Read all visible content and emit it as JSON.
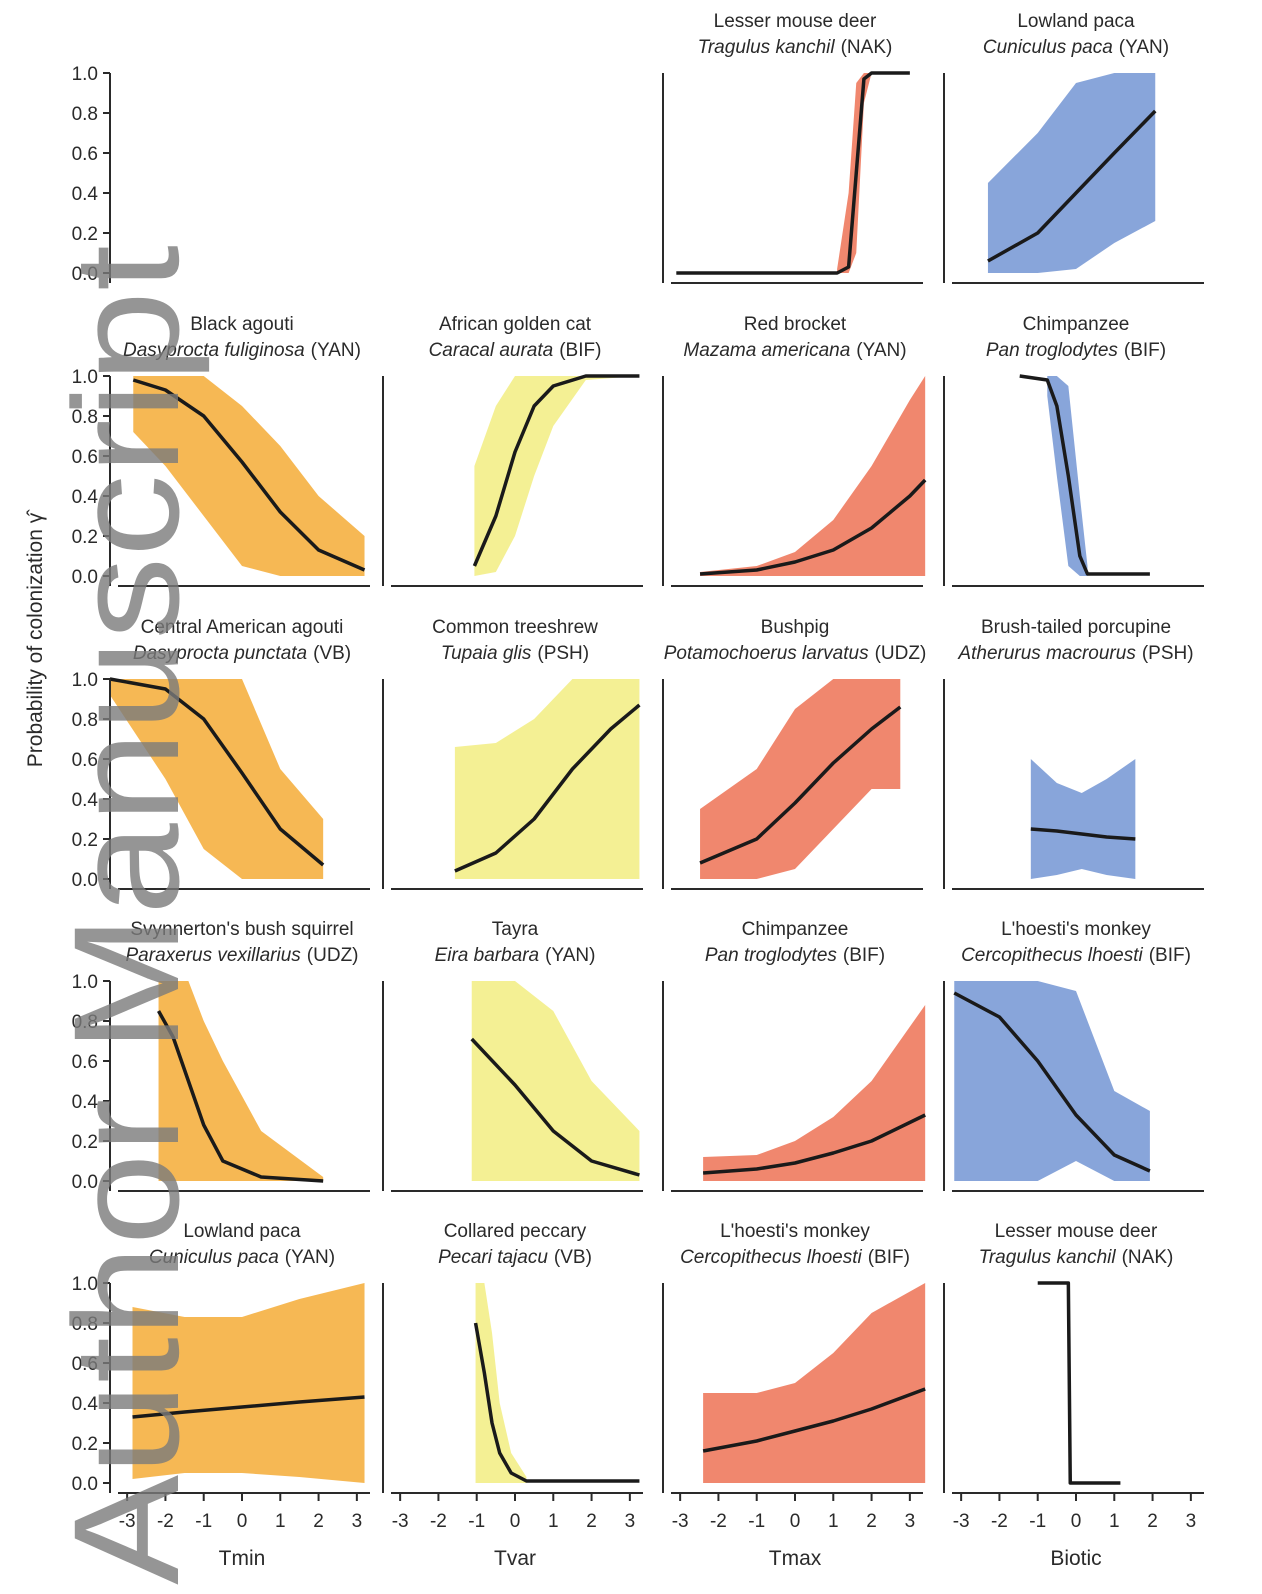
{
  "figure": {
    "ylabel": "Probability of colonization γ̂",
    "watermark": "Author Manuscript"
  },
  "chart_data": [
    {
      "type": "axis",
      "ylim": [
        -0.05,
        1.0
      ],
      "yticks": [
        {
          "value": 0,
          "label": "0.0"
        },
        {
          "value": 0.2,
          "label": "0.2"
        },
        {
          "value": 0.4,
          "label": "0.4"
        },
        {
          "value": 0.6,
          "label": "0.6"
        },
        {
          "value": 0.8,
          "label": "0.8"
        },
        {
          "value": 1,
          "label": "1.0"
        }
      ]
    },
    {
      "type": "line",
      "title": "Lesser mouse deer",
      "subtitle": "Tragulus kanchil",
      "site": "(NAK)",
      "color": "#ee7a5e",
      "line_color": "#1a1a1a",
      "xlim": [
        -3.5,
        3.5
      ],
      "ylim": [
        -0.05,
        1.0
      ],
      "x": [
        -3.1,
        1.1,
        1.4,
        1.6,
        1.8,
        2.0,
        3.0
      ],
      "values": [
        0,
        0,
        0.03,
        0.5,
        0.97,
        1,
        1
      ],
      "lower": [
        null,
        0,
        0,
        0.1,
        0.85,
        1,
        null
      ],
      "upper": [
        null,
        0.02,
        0.4,
        0.95,
        1,
        1,
        null
      ]
    },
    {
      "type": "line",
      "title": "Lowland paca",
      "subtitle": "Cuniculus paca",
      "site": "(YAN)",
      "color": "#7b9bd6",
      "line_color": "#1a1a1a",
      "xlim": [
        -3.5,
        3.5
      ],
      "ylim": [
        -0.05,
        1.0
      ],
      "x": [
        -2.3,
        -1,
        0,
        1,
        2.07
      ],
      "values": [
        0.06,
        0.2,
        0.4,
        0.6,
        0.81
      ],
      "lower": [
        0,
        0,
        0.02,
        0.15,
        0.26
      ],
      "upper": [
        0.45,
        0.7,
        0.95,
        1,
        1
      ]
    },
    {
      "type": "line",
      "title": "Black agouti",
      "subtitle": "Dasyprocta fuliginosa",
      "site": "(YAN)",
      "color": "#f5b041",
      "line_color": "#1a1a1a",
      "xlim": [
        -3.5,
        3.5
      ],
      "ylim": [
        -0.05,
        1.0
      ],
      "yticks": [
        {
          "value": 0,
          "label": "0.0"
        },
        {
          "value": 0.2,
          "label": "0.2"
        },
        {
          "value": 0.4,
          "label": "0.4"
        },
        {
          "value": 0.6,
          "label": "0.6"
        },
        {
          "value": 0.8,
          "label": "0.8"
        },
        {
          "value": 1,
          "label": "1.0"
        }
      ],
      "x": [
        -2.84,
        -2,
        -1,
        0,
        1,
        2,
        3.2
      ],
      "values": [
        0.98,
        0.93,
        0.8,
        0.57,
        0.32,
        0.13,
        0.03
      ],
      "lower": [
        0.72,
        0.55,
        0.3,
        0.05,
        0,
        0,
        0
      ],
      "upper": [
        1,
        1,
        1,
        0.85,
        0.65,
        0.4,
        0.2
      ]
    },
    {
      "type": "line",
      "title": "African golden cat",
      "subtitle": "Caracal aurata",
      "site": "(BIF)",
      "color": "#f3ee88",
      "line_color": "#1a1a1a",
      "xlim": [
        -3.5,
        3.5
      ],
      "ylim": [
        -0.05,
        1.0
      ],
      "x": [
        -1.06,
        -0.5,
        0,
        0.5,
        1,
        1.85,
        3.25
      ],
      "values": [
        0.05,
        0.3,
        0.62,
        0.85,
        0.95,
        1,
        1
      ],
      "lower": [
        0,
        0.02,
        0.2,
        0.5,
        0.75,
        0.98,
        1
      ],
      "upper": [
        0.55,
        0.85,
        1,
        1,
        1,
        1,
        1
      ]
    },
    {
      "type": "line",
      "title": "Red brocket",
      "subtitle": "Mazama americana",
      "site": "(YAN)",
      "color": "#ee7a5e",
      "line_color": "#1a1a1a",
      "xlim": [
        -3.5,
        3.5
      ],
      "ylim": [
        -0.05,
        1.0
      ],
      "x": [
        -2.48,
        -1,
        0,
        1,
        2,
        3,
        3.4
      ],
      "values": [
        0.01,
        0.03,
        0.07,
        0.13,
        0.24,
        0.4,
        0.48
      ],
      "lower": [
        0,
        0,
        0,
        0,
        0,
        0,
        0
      ],
      "upper": [
        0.02,
        0.05,
        0.12,
        0.28,
        0.55,
        0.88,
        1
      ]
    },
    {
      "type": "line",
      "title": "Chimpanzee",
      "subtitle": "Pan troglodytes",
      "site": "(BIF)",
      "color": "#7b9bd6",
      "line_color": "#1a1a1a",
      "xlim": [
        -3.5,
        3.5
      ],
      "ylim": [
        -0.05,
        1.0
      ],
      "x": [
        -1.47,
        -0.75,
        -0.5,
        -0.2,
        0.1,
        0.3,
        1.93
      ],
      "values": [
        1,
        0.98,
        0.85,
        0.5,
        0.1,
        0.01,
        0.01
      ],
      "lower": [
        null,
        0.9,
        0.5,
        0.05,
        0,
        0,
        null
      ],
      "upper": [
        null,
        1,
        1,
        0.95,
        0.4,
        0.05,
        null
      ]
    },
    {
      "type": "line",
      "title": "Central American agouti",
      "subtitle": "Dasyprocta punctata",
      "site": "(VB)",
      "color": "#f5b041",
      "line_color": "#1a1a1a",
      "xlim": [
        -3.5,
        3.5
      ],
      "ylim": [
        -0.05,
        1.0
      ],
      "yticks": [
        {
          "value": 0,
          "label": "0.0"
        },
        {
          "value": 0.2,
          "label": "0.2"
        },
        {
          "value": 0.4,
          "label": "0.4"
        },
        {
          "value": 0.6,
          "label": "0.6"
        },
        {
          "value": 0.8,
          "label": "0.8"
        },
        {
          "value": 1,
          "label": "1.0"
        }
      ],
      "x": [
        -3.45,
        -2,
        -1,
        0,
        1,
        2.12
      ],
      "values": [
        1,
        0.95,
        0.8,
        0.53,
        0.25,
        0.07
      ],
      "lower": [
        0.92,
        0.5,
        0.15,
        0,
        0,
        0
      ],
      "upper": [
        1,
        1,
        1,
        1,
        0.55,
        0.3
      ]
    },
    {
      "type": "line",
      "title": "Common treeshrew",
      "subtitle": "Tupaia glis",
      "site": "(PSH)",
      "color": "#f3ee88",
      "line_color": "#1a1a1a",
      "xlim": [
        -3.5,
        3.5
      ],
      "ylim": [
        -0.05,
        1.0
      ],
      "x": [
        -1.57,
        -0.5,
        0.5,
        1.5,
        2.5,
        3.25
      ],
      "values": [
        0.04,
        0.13,
        0.3,
        0.55,
        0.75,
        0.87
      ],
      "lower": [
        0,
        0,
        0,
        0,
        0,
        0
      ],
      "upper": [
        0.66,
        0.68,
        0.8,
        1,
        1,
        1
      ]
    },
    {
      "type": "line",
      "title": "Bushpig",
      "subtitle": "Potamochoerus larvatus",
      "site": "(UDZ)",
      "color": "#ee7a5e",
      "line_color": "#1a1a1a",
      "xlim": [
        -3.5,
        3.5
      ],
      "ylim": [
        -0.05,
        1.0
      ],
      "x": [
        -2.48,
        -1,
        0,
        1,
        2,
        2.75
      ],
      "values": [
        0.08,
        0.2,
        0.38,
        0.58,
        0.75,
        0.86
      ],
      "lower": [
        0,
        0,
        0.05,
        0.25,
        0.45,
        0.45
      ],
      "upper": [
        0.35,
        0.55,
        0.85,
        1,
        1,
        1
      ]
    },
    {
      "type": "line",
      "title": "Brush-tailed porcupine",
      "subtitle": "Atherurus macrourus",
      "site": "(PSH)",
      "color": "#7b9bd6",
      "line_color": "#1a1a1a",
      "xlim": [
        -3.5,
        3.5
      ],
      "ylim": [
        -0.05,
        1.0
      ],
      "x": [
        -1.18,
        -0.5,
        0.15,
        0.8,
        1.55
      ],
      "values": [
        0.25,
        0.24,
        0.225,
        0.21,
        0.2
      ],
      "lower": [
        0,
        0.02,
        0.05,
        0.02,
        0
      ],
      "upper": [
        0.6,
        0.48,
        0.43,
        0.5,
        0.6
      ]
    },
    {
      "type": "line",
      "title": "Svynnerton's bush squirrel",
      "subtitle": "Paraxerus vexillarius",
      "site": "(UDZ)",
      "color": "#f5b041",
      "line_color": "#1a1a1a",
      "xlim": [
        -3.5,
        3.5
      ],
      "ylim": [
        -0.05,
        1.0
      ],
      "yticks": [
        {
          "value": 0,
          "label": "0.0"
        },
        {
          "value": 0.2,
          "label": "0.2"
        },
        {
          "value": 0.4,
          "label": "0.4"
        },
        {
          "value": 0.6,
          "label": "0.6"
        },
        {
          "value": 0.8,
          "label": "0.8"
        },
        {
          "value": 1,
          "label": "1.0"
        }
      ],
      "x": [
        -2.18,
        -1.8,
        -1.4,
        -1,
        -0.5,
        0.5,
        2.12
      ],
      "values": [
        0.85,
        0.72,
        0.5,
        0.28,
        0.1,
        0.02,
        0
      ],
      "lower": [
        0,
        0,
        0,
        0,
        0,
        0,
        0
      ],
      "upper": [
        1,
        1,
        1,
        0.8,
        0.6,
        0.25,
        0.02
      ]
    },
    {
      "type": "line",
      "title": "Tayra",
      "subtitle": "Eira barbara",
      "site": "(YAN)",
      "color": "#f3ee88",
      "line_color": "#1a1a1a",
      "xlim": [
        -3.5,
        3.5
      ],
      "ylim": [
        -0.05,
        1.0
      ],
      "x": [
        -1.13,
        0,
        1,
        2,
        3.25
      ],
      "values": [
        0.71,
        0.48,
        0.25,
        0.1,
        0.03
      ],
      "lower": [
        0,
        0,
        0,
        0,
        0
      ],
      "upper": [
        1,
        1,
        0.85,
        0.5,
        0.25
      ]
    },
    {
      "type": "line",
      "title": "Chimpanzee",
      "subtitle": "Pan troglodytes",
      "site": "(BIF)",
      "color": "#ee7a5e",
      "line_color": "#1a1a1a",
      "xlim": [
        -3.5,
        3.5
      ],
      "ylim": [
        -0.05,
        1.0
      ],
      "x": [
        -2.4,
        -1,
        0,
        1,
        2,
        3.4
      ],
      "values": [
        0.04,
        0.06,
        0.09,
        0.14,
        0.2,
        0.33
      ],
      "lower": [
        0,
        0,
        0,
        0,
        0,
        0
      ],
      "upper": [
        0.12,
        0.13,
        0.2,
        0.32,
        0.5,
        0.88
      ]
    },
    {
      "type": "line",
      "title": "L'hoesti's monkey",
      "subtitle": "Cercopithecus lhoesti",
      "site": "(BIF)",
      "color": "#7b9bd6",
      "line_color": "#1a1a1a",
      "xlim": [
        -3.5,
        3.5
      ],
      "ylim": [
        -0.05,
        1.0
      ],
      "x": [
        -3.18,
        -2,
        -1,
        0,
        1,
        1.93
      ],
      "values": [
        0.94,
        0.82,
        0.6,
        0.33,
        0.13,
        0.05
      ],
      "lower": [
        0,
        0,
        0,
        0.1,
        0,
        0
      ],
      "upper": [
        1,
        1,
        1,
        0.95,
        0.45,
        0.35
      ]
    },
    {
      "type": "line",
      "title": "Lowland paca",
      "subtitle": "Cuniculus paca",
      "site": "(YAN)",
      "color": "#f5b041",
      "line_color": "#1a1a1a",
      "xlim": [
        -3.5,
        3.5
      ],
      "ylim": [
        -0.05,
        1.0
      ],
      "yticks": [
        {
          "value": 0,
          "label": "0.0"
        },
        {
          "value": 0.2,
          "label": "0.2"
        },
        {
          "value": 0.4,
          "label": "0.4"
        },
        {
          "value": 0.6,
          "label": "0.6"
        },
        {
          "value": 0.8,
          "label": "0.8"
        },
        {
          "value": 1,
          "label": "1.0"
        }
      ],
      "xticks": [
        -3,
        -2,
        -1,
        0,
        1,
        2,
        3
      ],
      "xlabel": "Tmin",
      "x": [
        -2.86,
        -1.5,
        0,
        1.5,
        3.2
      ],
      "values": [
        0.33,
        0.355,
        0.38,
        0.405,
        0.43
      ],
      "lower": [
        0.02,
        0.05,
        0.05,
        0.03,
        0
      ],
      "upper": [
        0.88,
        0.83,
        0.83,
        0.92,
        1
      ]
    },
    {
      "type": "line",
      "title": "Collared peccary",
      "subtitle": "Pecari tajacu",
      "site": "(VB)",
      "color": "#f3ee88",
      "line_color": "#1a1a1a",
      "xlim": [
        -3.5,
        3.5
      ],
      "ylim": [
        -0.05,
        1.0
      ],
      "xticks": [
        -3,
        -2,
        -1,
        0,
        1,
        2,
        3
      ],
      "xlabel": "Tvar",
      "x": [
        -1.03,
        -0.8,
        -0.6,
        -0.4,
        -0.1,
        0.3,
        3.25
      ],
      "values": [
        0.8,
        0.55,
        0.3,
        0.15,
        0.05,
        0.01,
        0.01
      ],
      "lower": [
        0,
        0,
        0,
        0,
        0,
        0,
        null
      ],
      "upper": [
        1,
        1,
        0.75,
        0.4,
        0.15,
        0.03,
        null
      ]
    },
    {
      "type": "line",
      "title": "L'hoesti's monkey",
      "subtitle": "Cercopithecus lhoesti",
      "site": "(BIF)",
      "color": "#ee7a5e",
      "line_color": "#1a1a1a",
      "xlim": [
        -3.5,
        3.5
      ],
      "ylim": [
        -0.05,
        1.0
      ],
      "xticks": [
        -3,
        -2,
        -1,
        0,
        1,
        2,
        3
      ],
      "xlabel": "Tmax",
      "x": [
        -2.4,
        -1,
        0,
        1,
        2,
        3.4
      ],
      "values": [
        0.16,
        0.21,
        0.26,
        0.31,
        0.37,
        0.47
      ],
      "lower": [
        0,
        0,
        0,
        0,
        0,
        0
      ],
      "upper": [
        0.45,
        0.45,
        0.5,
        0.65,
        0.85,
        1
      ]
    },
    {
      "type": "line",
      "title": "Lesser mouse deer",
      "subtitle": "Tragulus kanchil",
      "site": "(NAK)",
      "line_color": "#1a1a1a",
      "xlim": [
        -3.5,
        3.5
      ],
      "ylim": [
        -0.05,
        1.0
      ],
      "xticks": [
        -3,
        -2,
        -1,
        0,
        1,
        2,
        3
      ],
      "xlabel": "Biotic",
      "x": [
        -1.0,
        -0.2,
        -0.15,
        1.16
      ],
      "values": [
        1,
        1,
        0,
        0
      ]
    }
  ]
}
